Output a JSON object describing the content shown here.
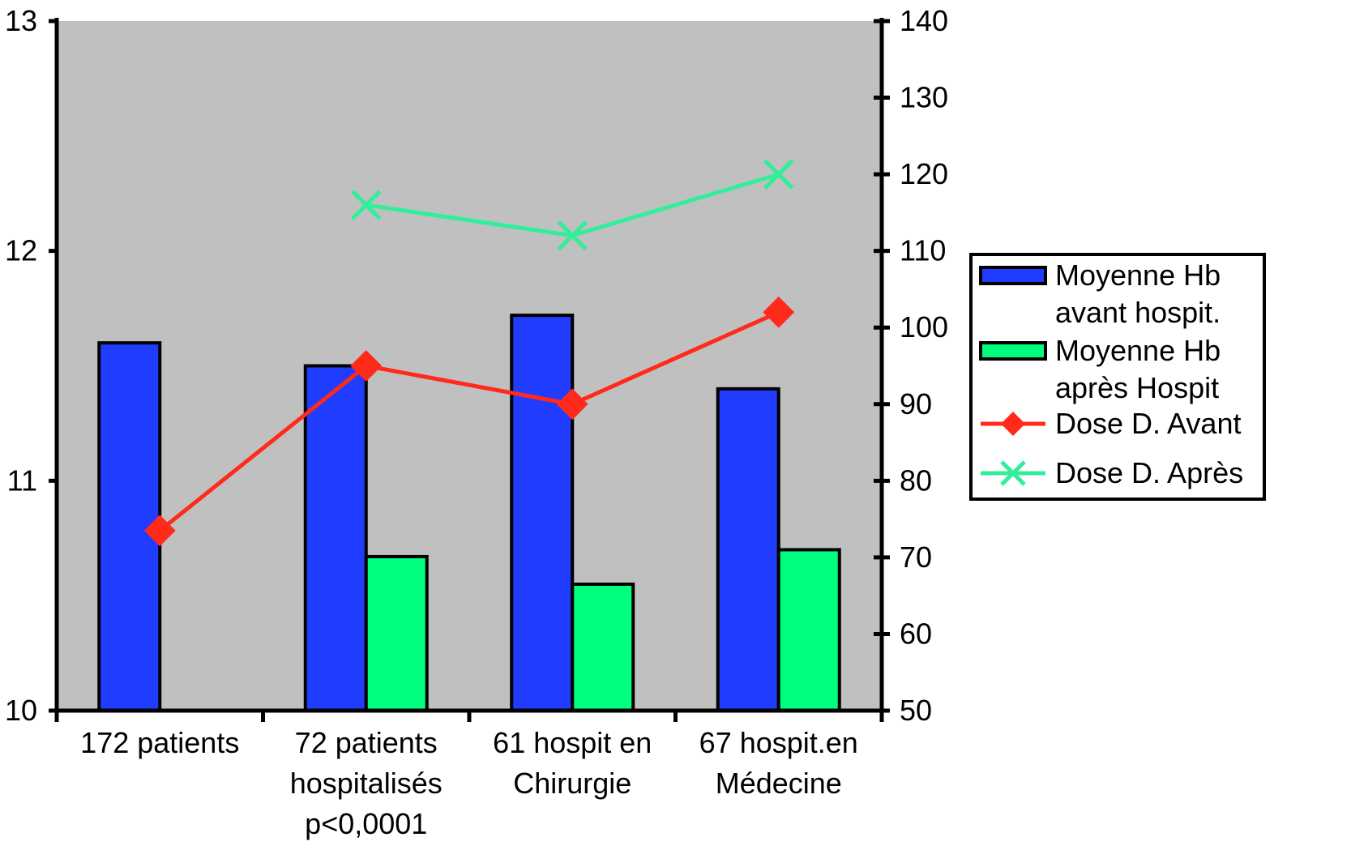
{
  "chart_data": {
    "type": "bar",
    "categories": [
      [
        "172 patients"
      ],
      [
        "72 patients",
        "hospitalisés",
        "p<0,0001"
      ],
      [
        "61 hospit en",
        "Chirurgie"
      ],
      [
        "67 hospit.en",
        "Médecine"
      ]
    ],
    "y_left": {
      "ylim": [
        10,
        13
      ],
      "ticks": [
        "10",
        "11",
        "12",
        "13"
      ]
    },
    "y_right": {
      "ylim": [
        50,
        140
      ],
      "ticks": [
        "50",
        "60",
        "70",
        "80",
        "90",
        "100",
        "110",
        "120",
        "130",
        "140"
      ]
    },
    "bar_series": [
      {
        "name": [
          "Moyenne Hb",
          "avant hospit."
        ],
        "values": [
          11.6,
          11.5,
          11.72,
          11.4
        ],
        "color": "#1f3cff"
      },
      {
        "name": [
          "Moyenne Hb",
          "après Hospit"
        ],
        "values": [
          null,
          10.67,
          10.55,
          10.7
        ],
        "color": "#00ff7f"
      }
    ],
    "line_series": [
      {
        "name": "Dose D. Avant",
        "values": [
          73.5,
          95,
          90,
          102
        ],
        "color": "#ff2a1a",
        "marker": "diamond"
      },
      {
        "name": "Dose D. Après",
        "values": [
          null,
          116,
          112,
          120
        ],
        "color": "#33ee99",
        "marker": "x"
      }
    ],
    "plot_background": "#c0c0c0",
    "legend_position": "right"
  }
}
